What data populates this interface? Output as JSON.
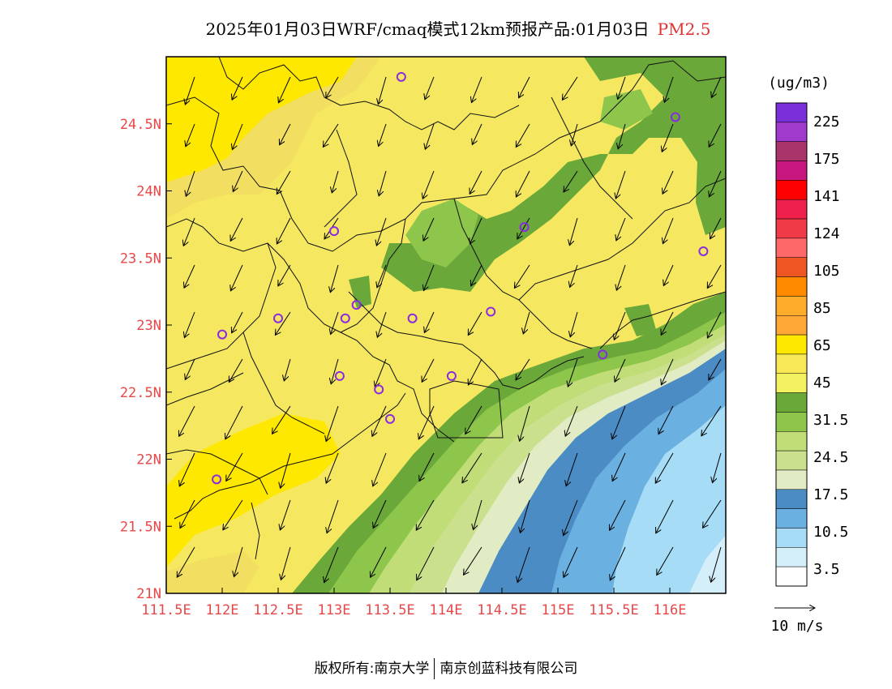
{
  "title": {
    "main": "2025年01月03日WRF/cmaq模式12km预报产品:01月03日",
    "pollutant": "PM2.5"
  },
  "map": {
    "lon_range": [
      111.5,
      116.5
    ],
    "lat_range": [
      21.0,
      25.0
    ],
    "lon_ticks": [
      "111.5E",
      "112E",
      "112.5E",
      "113E",
      "113.5E",
      "114E",
      "114.5E",
      "115E",
      "115.5E",
      "116E"
    ],
    "lat_ticks": [
      "21N",
      "21.5N",
      "22N",
      "22.5N",
      "23N",
      "23.5N",
      "24N",
      "24.5N"
    ],
    "tick_label_color": "#e84848",
    "stations": [
      {
        "lon": 113.6,
        "lat": 24.85
      },
      {
        "lon": 116.05,
        "lat": 24.55
      },
      {
        "lon": 113.0,
        "lat": 23.7
      },
      {
        "lon": 114.7,
        "lat": 23.73
      },
      {
        "lon": 116.3,
        "lat": 23.55
      },
      {
        "lon": 113.2,
        "lat": 23.15
      },
      {
        "lon": 112.5,
        "lat": 23.05
      },
      {
        "lon": 113.1,
        "lat": 23.05
      },
      {
        "lon": 113.7,
        "lat": 23.05
      },
      {
        "lon": 114.4,
        "lat": 23.1
      },
      {
        "lon": 112.0,
        "lat": 22.93
      },
      {
        "lon": 115.4,
        "lat": 22.78
      },
      {
        "lon": 113.05,
        "lat": 22.62
      },
      {
        "lon": 114.05,
        "lat": 22.62
      },
      {
        "lon": 113.4,
        "lat": 22.52
      },
      {
        "lon": 113.5,
        "lat": 22.3
      },
      {
        "lon": 111.95,
        "lat": 21.85
      }
    ]
  },
  "legend": {
    "unit": "(ug/m3)",
    "labels": [
      "225",
      "175",
      "141",
      "124",
      "105",
      "85",
      "65",
      "45",
      "31.5",
      "24.5",
      "17.5",
      "10.5",
      "3.5"
    ],
    "colors": [
      "#7a2fd8",
      "#a03acd",
      "#a8346a",
      "#c81880",
      "#ff0000",
      "#f0204c",
      "#f03a48",
      "#ff6868",
      "#ee5522",
      "#ff8a00",
      "#ffad2a",
      "#ffa838",
      "#ffe800",
      "#f8e858",
      "#f2f260",
      "#6aa83a",
      "#8ec64c",
      "#c0dd78",
      "#cbe08c",
      "#e2ecc4",
      "#4c8cc4",
      "#6ab0e0",
      "#a6dcf5",
      "#d4eefa",
      "#ffffff"
    ]
  },
  "wind_scale": {
    "label": "10  m/s"
  },
  "footer": {
    "left": "版权所有:南京大学",
    "right": "南京创蓝科技有限公司"
  }
}
